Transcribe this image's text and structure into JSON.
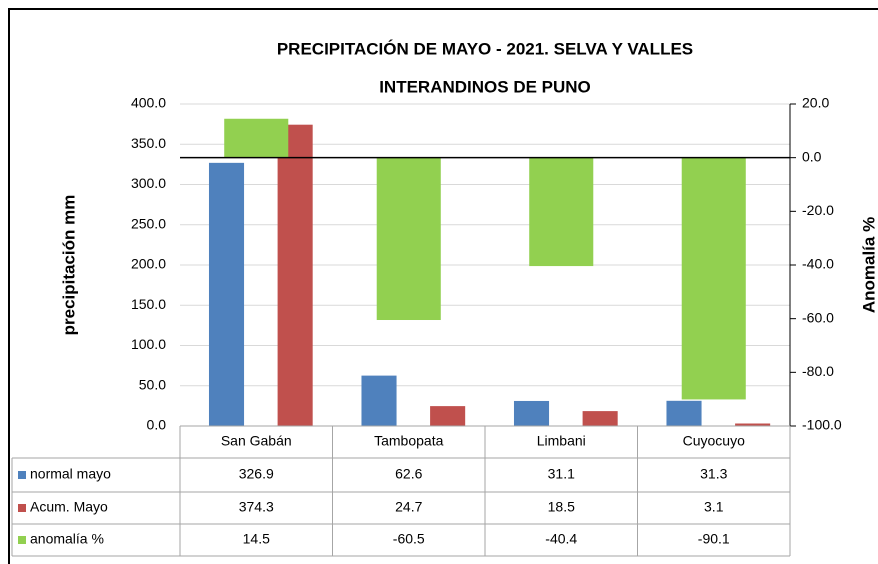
{
  "chart_data": {
    "type": "bar",
    "title": [
      "PRECIPITACIÓN DE MAYO - 2021. SELVA Y VALLES",
      "INTERANDINOS DE PUNO"
    ],
    "ylabel": "precipitación mm",
    "y2label": "Anomalía %",
    "categories": [
      "San Gabán",
      "Tambopata",
      "Limbani",
      "Cuyocuyo"
    ],
    "series": [
      {
        "name": "normal mayo",
        "color": "#4f81bd",
        "values": [
          326.9,
          62.6,
          31.1,
          31.3
        ]
      },
      {
        "name": "Acum. Mayo",
        "color": "#c0504d",
        "values": [
          374.3,
          24.7,
          18.5,
          3.1
        ]
      },
      {
        "name": "anomalía %",
        "color": "#92d050",
        "axis": "y2",
        "values": [
          14.5,
          -60.5,
          -40.4,
          -90.1
        ]
      }
    ],
    "ylim": [
      0,
      400
    ],
    "yticks": [
      {
        "value": 0,
        "label": "0.0"
      },
      {
        "value": 50,
        "label": "50.0"
      },
      {
        "value": 100,
        "label": "100.0"
      },
      {
        "value": 150,
        "label": "150.0"
      },
      {
        "value": 200,
        "label": "200.0"
      },
      {
        "value": 250,
        "label": "250.0"
      },
      {
        "value": 300,
        "label": "300.0"
      },
      {
        "value": 350,
        "label": "350.0"
      },
      {
        "value": 400,
        "label": "400.0"
      }
    ],
    "y2lim": [
      -100,
      20
    ],
    "y2ticks": [
      {
        "value": -100,
        "label": "-100.0"
      },
      {
        "value": -80,
        "label": "-80.0"
      },
      {
        "value": -60,
        "label": "-60.0"
      },
      {
        "value": -40,
        "label": "-40.0"
      },
      {
        "value": -20,
        "label": "-20.0"
      },
      {
        "value": 0,
        "label": "0.0"
      },
      {
        "value": 20,
        "label": "20.0"
      }
    ],
    "y2_negative_color": "#ff0000",
    "grid": true
  }
}
